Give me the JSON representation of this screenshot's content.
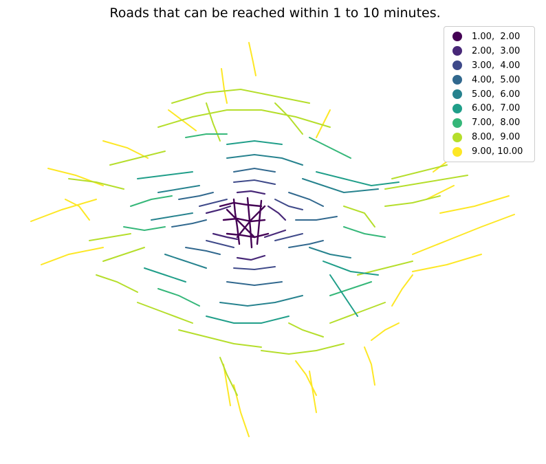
{
  "title": "Roads that can be reached within 1 to 10 minutes.",
  "legend": {
    "items": [
      {
        "label": "1.00,  2.00",
        "color": "#440154"
      },
      {
        "label": "2.00,  3.00",
        "color": "#482878"
      },
      {
        "label": "3.00,  4.00",
        "color": "#3e4989"
      },
      {
        "label": "4.00,  5.00",
        "color": "#31688e"
      },
      {
        "label": "5.00,  6.00",
        "color": "#26828e"
      },
      {
        "label": "6.00,  7.00",
        "color": "#1f9e89"
      },
      {
        "label": "7.00,  8.00",
        "color": "#35b779"
      },
      {
        "label": "8.00,  9.00",
        "color": "#b5de2b"
      },
      {
        "label": "9.00, 10.00",
        "color": "#fde725"
      }
    ]
  }
}
